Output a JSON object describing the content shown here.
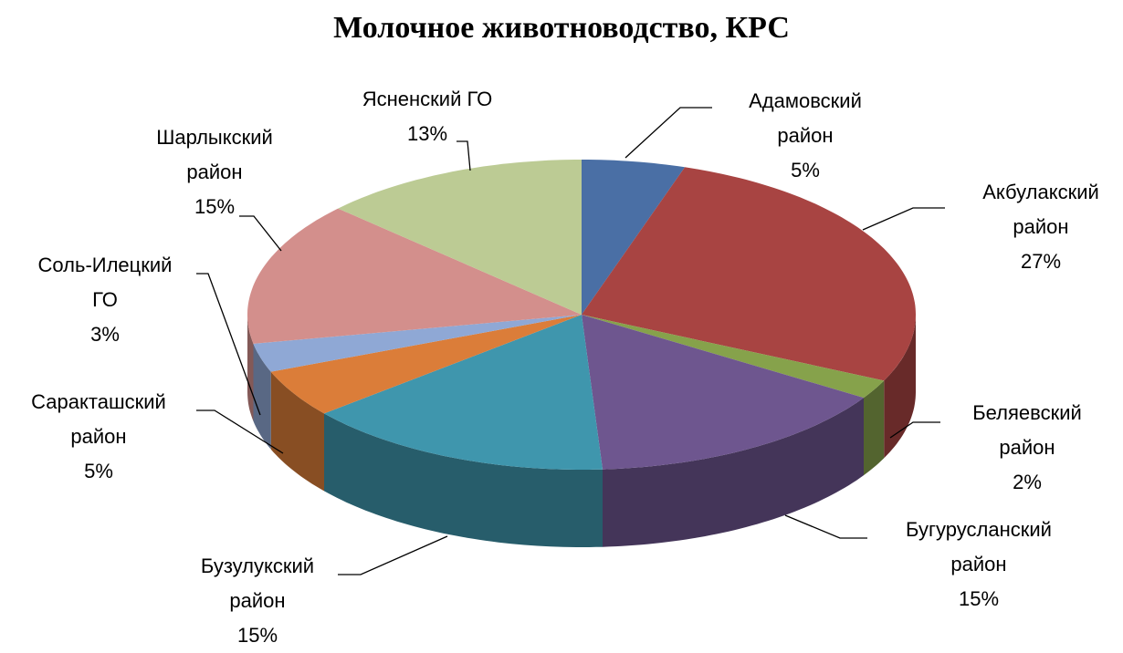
{
  "chart_data": {
    "type": "pie",
    "title": "Молочное животноводство, КРС",
    "categories": [
      "Адамовский район",
      "Акбулакский район",
      "Беляевский район",
      "Бугурусланский район",
      "Бузулукский район",
      "Саракташский район",
      "Соль-Илецкий ГО",
      "Шарлыкский район",
      "Ясненский ГО"
    ],
    "values": [
      5,
      27,
      2,
      15,
      15,
      5,
      3,
      15,
      13
    ],
    "value_labels": [
      "5%",
      "27%",
      "2%",
      "15%",
      "15%",
      "5%",
      "3%",
      "15%",
      "13%"
    ],
    "colors": [
      "#4a6fa5",
      "#a84442",
      "#86a24b",
      "#6e568f",
      "#3f96ad",
      "#db7d39",
      "#8fa8d5",
      "#d38f8c",
      "#bccb94"
    ]
  }
}
